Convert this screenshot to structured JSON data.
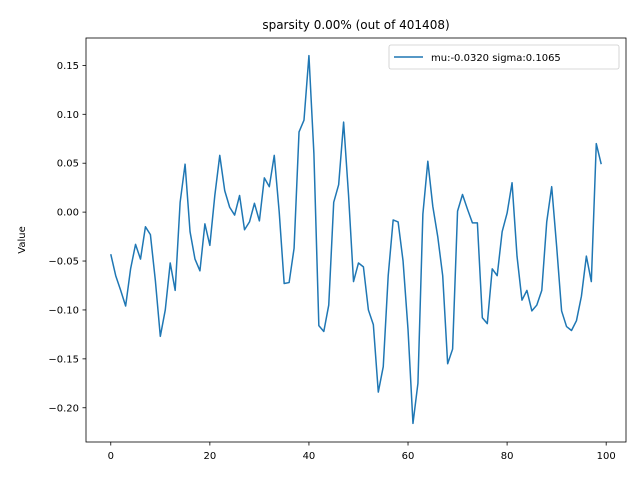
{
  "chart_data": {
    "type": "line",
    "title": "sparsity 0.00% (out of 401408)",
    "xlabel": "",
    "ylabel": "Value",
    "xlim": [
      -5,
      104
    ],
    "ylim": [
      -0.235,
      0.178
    ],
    "xticks": [
      0,
      20,
      40,
      60,
      80,
      100
    ],
    "yticks": [
      -0.2,
      -0.15,
      -0.1,
      -0.05,
      0.0,
      0.05,
      0.1,
      0.15
    ],
    "ytick_labels": [
      "−0.20",
      "−0.15",
      "−0.10",
      "−0.05",
      "0.00",
      "0.05",
      "0.10",
      "0.15"
    ],
    "grid": false,
    "legend_position": "top-right",
    "series": [
      {
        "name": "mu:-0.0320 sigma:0.1065",
        "color": "#1f77b4",
        "x": [
          0,
          1,
          2,
          3,
          4,
          5,
          6,
          7,
          8,
          9,
          10,
          11,
          12,
          13,
          14,
          15,
          16,
          17,
          18,
          19,
          20,
          21,
          22,
          23,
          24,
          25,
          26,
          27,
          28,
          29,
          30,
          31,
          32,
          33,
          34,
          35,
          36,
          37,
          38,
          39,
          40,
          41,
          42,
          43,
          44,
          45,
          46,
          47,
          48,
          49,
          50,
          51,
          52,
          53,
          54,
          55,
          56,
          57,
          58,
          59,
          60,
          61,
          62,
          63,
          64,
          65,
          66,
          67,
          68,
          69,
          70,
          71,
          72,
          73,
          74,
          75,
          76,
          77,
          78,
          79,
          80,
          81,
          82,
          83,
          84,
          85,
          86,
          87,
          88,
          89,
          90,
          91,
          92,
          93,
          94,
          95,
          96,
          97,
          98,
          99
        ],
        "values": [
          -0.043,
          -0.065,
          -0.08,
          -0.096,
          -0.058,
          -0.033,
          -0.048,
          -0.015,
          -0.023,
          -0.07,
          -0.127,
          -0.1,
          -0.052,
          -0.08,
          0.01,
          0.049,
          -0.02,
          -0.048,
          -0.06,
          -0.012,
          -0.034,
          0.017,
          0.058,
          0.022,
          0.005,
          -0.003,
          0.017,
          -0.018,
          -0.01,
          0.009,
          -0.009,
          0.035,
          0.026,
          0.058,
          0.0,
          -0.073,
          -0.072,
          -0.037,
          0.082,
          0.094,
          0.16,
          0.06,
          -0.116,
          -0.122,
          -0.095,
          0.01,
          0.028,
          0.092,
          0.017,
          -0.071,
          -0.052,
          -0.056,
          -0.1,
          -0.115,
          -0.184,
          -0.158,
          -0.065,
          -0.008,
          -0.01,
          -0.05,
          -0.12,
          -0.216,
          -0.175,
          -0.002,
          0.052,
          0.006,
          -0.025,
          -0.065,
          -0.155,
          -0.14,
          0.001,
          0.018,
          0.003,
          -0.011,
          -0.011,
          -0.108,
          -0.114,
          -0.058,
          -0.065,
          -0.02,
          -0.001,
          0.03,
          -0.045,
          -0.09,
          -0.08,
          -0.101,
          -0.095,
          -0.08,
          -0.01,
          0.026,
          -0.035,
          -0.101,
          -0.117,
          -0.121,
          -0.111,
          -0.086,
          -0.045,
          -0.071,
          0.07,
          0.049
        ]
      }
    ]
  }
}
